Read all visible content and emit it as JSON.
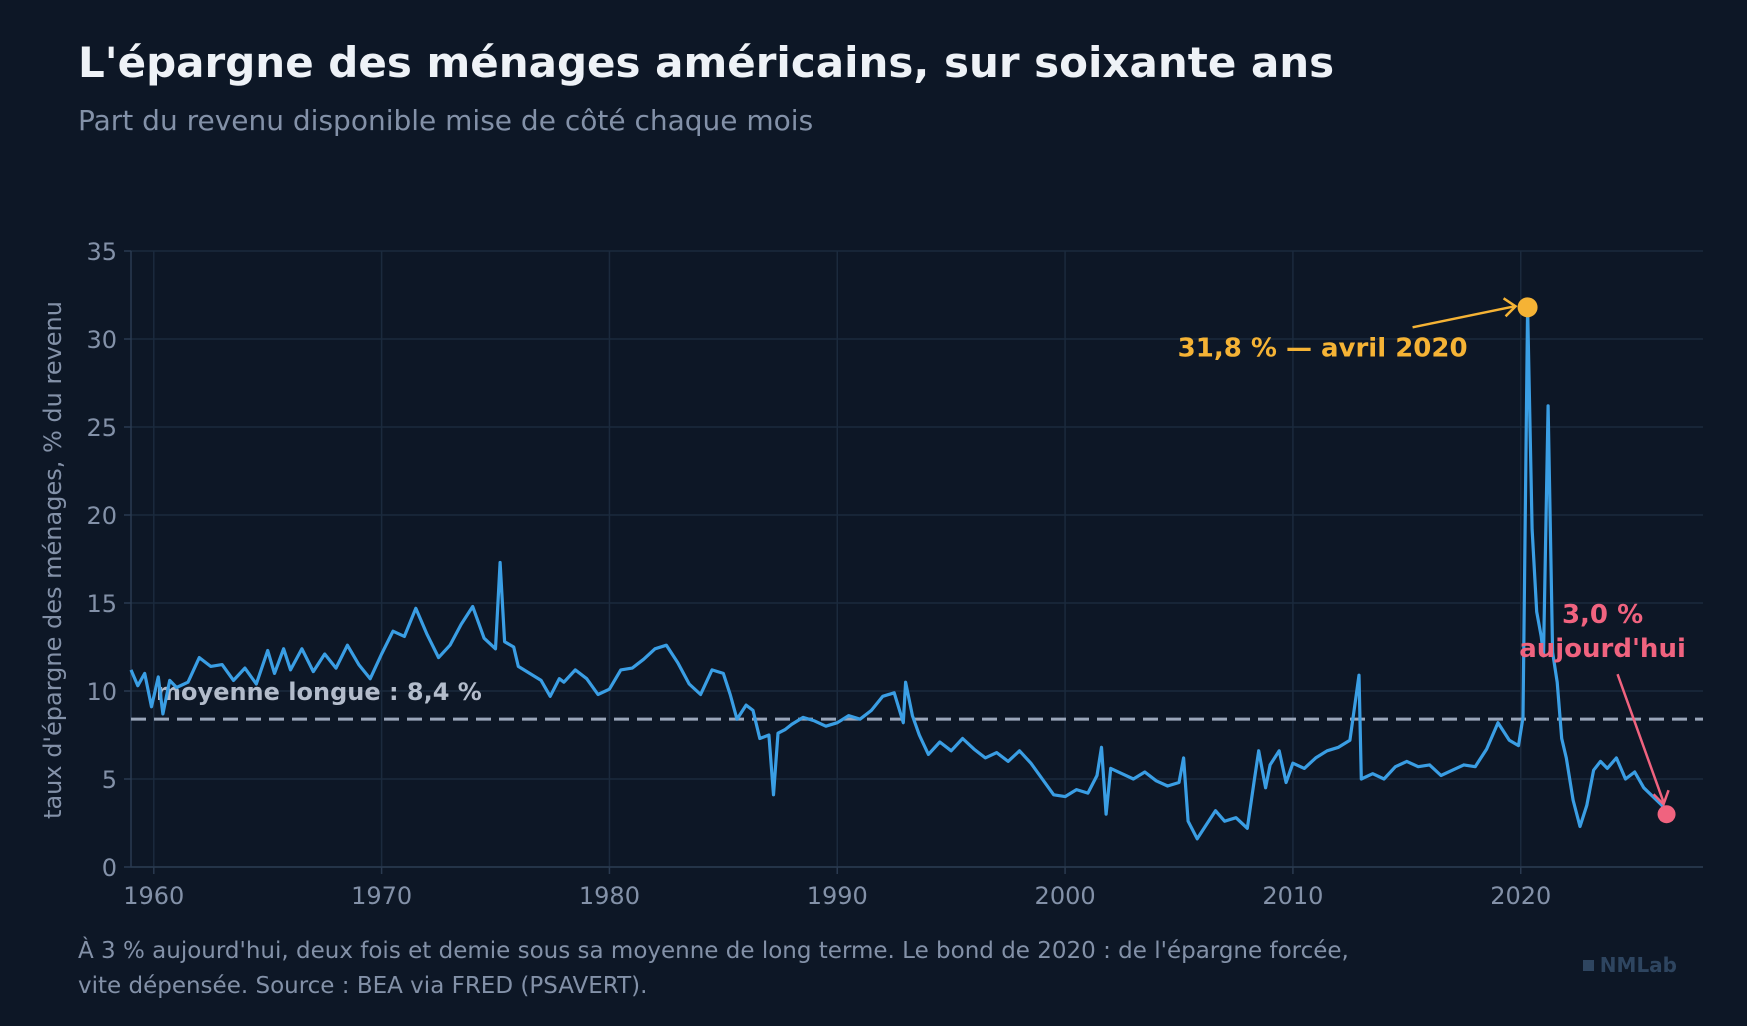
{
  "title": "L'épargne des ménages américains, sur soixante ans",
  "subtitle": "Part du revenu disponible mise de côté chaque mois",
  "footer": {
    "line1": "À 3 % aujourd'hui, deux fois et demie sous sa moyenne de long terme. Le bond de 2020 : de l'épargne forcée,",
    "line2": "vite dépensée. Source : BEA via FRED (PSAVERT)."
  },
  "brand": "NMLab",
  "colors": {
    "background": "#0d1726",
    "series": "#3a9ee4",
    "peak": "#f5b335",
    "current": "#f0637f",
    "mean_line": "#9aa6ba",
    "grid": "#1b2a3d"
  },
  "chart_data": {
    "type": "line",
    "xlabel": "",
    "ylabel": "taux d'épargne des ménages, % du revenu",
    "xlim": [
      1959,
      2028
    ],
    "ylim": [
      0,
      35
    ],
    "xticks": [
      1960,
      1970,
      1980,
      1990,
      2000,
      2010,
      2020
    ],
    "yticks": [
      0,
      5,
      10,
      15,
      20,
      25,
      30,
      35
    ],
    "grid": true,
    "mean": {
      "value": 8.4,
      "label": "moyenne longue : 8,4 %"
    },
    "series": [
      {
        "name": "",
        "points": [
          [
            1959.0,
            11.2
          ],
          [
            1959.3,
            10.3
          ],
          [
            1959.6,
            11.0
          ],
          [
            1959.9,
            9.1
          ],
          [
            1960.2,
            10.8
          ],
          [
            1960.4,
            8.7
          ],
          [
            1960.7,
            10.6
          ],
          [
            1961.0,
            10.2
          ],
          [
            1961.5,
            10.5
          ],
          [
            1962.0,
            11.9
          ],
          [
            1962.5,
            11.4
          ],
          [
            1963.0,
            11.5
          ],
          [
            1963.5,
            10.6
          ],
          [
            1964.0,
            11.3
          ],
          [
            1964.5,
            10.4
          ],
          [
            1965.0,
            12.3
          ],
          [
            1965.3,
            11.0
          ],
          [
            1965.7,
            12.4
          ],
          [
            1966.0,
            11.2
          ],
          [
            1966.5,
            12.4
          ],
          [
            1967.0,
            11.1
          ],
          [
            1967.5,
            12.1
          ],
          [
            1968.0,
            11.3
          ],
          [
            1968.5,
            12.6
          ],
          [
            1969.0,
            11.5
          ],
          [
            1969.5,
            10.7
          ],
          [
            1970.0,
            12.1
          ],
          [
            1970.5,
            13.4
          ],
          [
            1971.0,
            13.1
          ],
          [
            1971.5,
            14.7
          ],
          [
            1972.0,
            13.2
          ],
          [
            1972.5,
            11.9
          ],
          [
            1973.0,
            12.6
          ],
          [
            1973.5,
            13.8
          ],
          [
            1974.0,
            14.8
          ],
          [
            1974.5,
            13.0
          ],
          [
            1975.0,
            12.4
          ],
          [
            1975.2,
            17.3
          ],
          [
            1975.4,
            12.8
          ],
          [
            1975.8,
            12.5
          ],
          [
            1976.0,
            11.4
          ],
          [
            1976.5,
            11.0
          ],
          [
            1977.0,
            10.6
          ],
          [
            1977.4,
            9.7
          ],
          [
            1977.8,
            10.7
          ],
          [
            1978.0,
            10.5
          ],
          [
            1978.5,
            11.2
          ],
          [
            1979.0,
            10.7
          ],
          [
            1979.5,
            9.8
          ],
          [
            1980.0,
            10.1
          ],
          [
            1980.5,
            11.2
          ],
          [
            1981.0,
            11.3
          ],
          [
            1981.5,
            11.8
          ],
          [
            1982.0,
            12.4
          ],
          [
            1982.5,
            12.6
          ],
          [
            1983.0,
            11.6
          ],
          [
            1983.5,
            10.4
          ],
          [
            1984.0,
            9.8
          ],
          [
            1984.5,
            11.2
          ],
          [
            1985.0,
            11.0
          ],
          [
            1985.3,
            9.8
          ],
          [
            1985.6,
            8.4
          ],
          [
            1986.0,
            9.2
          ],
          [
            1986.3,
            8.9
          ],
          [
            1986.6,
            7.3
          ],
          [
            1987.0,
            7.5
          ],
          [
            1987.2,
            4.1
          ],
          [
            1987.4,
            7.6
          ],
          [
            1987.7,
            7.8
          ],
          [
            1988.0,
            8.1
          ],
          [
            1988.5,
            8.5
          ],
          [
            1989.0,
            8.3
          ],
          [
            1989.5,
            8.0
          ],
          [
            1990.0,
            8.2
          ],
          [
            1990.5,
            8.6
          ],
          [
            1991.0,
            8.4
          ],
          [
            1991.5,
            8.9
          ],
          [
            1992.0,
            9.7
          ],
          [
            1992.5,
            9.9
          ],
          [
            1992.9,
            8.2
          ],
          [
            1993.0,
            10.5
          ],
          [
            1993.3,
            8.6
          ],
          [
            1993.6,
            7.5
          ],
          [
            1994.0,
            6.4
          ],
          [
            1994.5,
            7.1
          ],
          [
            1995.0,
            6.6
          ],
          [
            1995.5,
            7.3
          ],
          [
            1996.0,
            6.7
          ],
          [
            1996.5,
            6.2
          ],
          [
            1997.0,
            6.5
          ],
          [
            1997.5,
            6.0
          ],
          [
            1998.0,
            6.6
          ],
          [
            1998.5,
            5.9
          ],
          [
            1999.0,
            5.0
          ],
          [
            1999.5,
            4.1
          ],
          [
            2000.0,
            4.0
          ],
          [
            2000.5,
            4.4
          ],
          [
            2001.0,
            4.2
          ],
          [
            2001.4,
            5.2
          ],
          [
            2001.6,
            6.8
          ],
          [
            2001.8,
            3.0
          ],
          [
            2002.0,
            5.6
          ],
          [
            2002.5,
            5.3
          ],
          [
            2003.0,
            5.0
          ],
          [
            2003.5,
            5.4
          ],
          [
            2004.0,
            4.9
          ],
          [
            2004.5,
            4.6
          ],
          [
            2005.0,
            4.8
          ],
          [
            2005.2,
            6.2
          ],
          [
            2005.4,
            2.6
          ],
          [
            2005.8,
            1.6
          ],
          [
            2006.2,
            2.4
          ],
          [
            2006.6,
            3.2
          ],
          [
            2007.0,
            2.6
          ],
          [
            2007.5,
            2.8
          ],
          [
            2008.0,
            2.2
          ],
          [
            2008.3,
            4.9
          ],
          [
            2008.5,
            6.6
          ],
          [
            2008.8,
            4.5
          ],
          [
            2009.0,
            5.8
          ],
          [
            2009.4,
            6.6
          ],
          [
            2009.7,
            4.8
          ],
          [
            2010.0,
            5.9
          ],
          [
            2010.5,
            5.6
          ],
          [
            2011.0,
            6.2
          ],
          [
            2011.5,
            6.6
          ],
          [
            2012.0,
            6.8
          ],
          [
            2012.5,
            7.2
          ],
          [
            2012.9,
            10.9
          ],
          [
            2013.0,
            5.0
          ],
          [
            2013.5,
            5.3
          ],
          [
            2014.0,
            5.0
          ],
          [
            2014.5,
            5.7
          ],
          [
            2015.0,
            6.0
          ],
          [
            2015.5,
            5.7
          ],
          [
            2016.0,
            5.8
          ],
          [
            2016.5,
            5.2
          ],
          [
            2017.0,
            5.5
          ],
          [
            2017.5,
            5.8
          ],
          [
            2018.0,
            5.7
          ],
          [
            2018.5,
            6.7
          ],
          [
            2019.0,
            8.2
          ],
          [
            2019.5,
            7.2
          ],
          [
            2019.9,
            6.9
          ],
          [
            2020.1,
            8.5
          ],
          [
            2020.3,
            31.8
          ],
          [
            2020.5,
            19.2
          ],
          [
            2020.7,
            14.5
          ],
          [
            2020.9,
            13.1
          ],
          [
            2021.0,
            12.0
          ],
          [
            2021.2,
            26.2
          ],
          [
            2021.4,
            12.2
          ],
          [
            2021.6,
            10.5
          ],
          [
            2021.8,
            7.3
          ],
          [
            2022.0,
            6.2
          ],
          [
            2022.3,
            3.8
          ],
          [
            2022.6,
            2.3
          ],
          [
            2022.9,
            3.5
          ],
          [
            2023.2,
            5.5
          ],
          [
            2023.5,
            6.0
          ],
          [
            2023.8,
            5.6
          ],
          [
            2024.2,
            6.2
          ],
          [
            2024.6,
            5.0
          ],
          [
            2025.0,
            5.4
          ],
          [
            2025.4,
            4.5
          ],
          [
            2025.8,
            4.0
          ],
          [
            2026.2,
            3.5
          ],
          [
            2026.4,
            3.0
          ]
        ]
      }
    ],
    "annotations": [
      {
        "x": 2020.3,
        "y": 31.8,
        "label": "31,8 % — avril 2020",
        "color": "#f5b335"
      },
      {
        "x": 2026.4,
        "y": 3.0,
        "label_line1": "3,0 %",
        "label_line2": "aujourd'hui",
        "color": "#f0637f"
      }
    ]
  }
}
